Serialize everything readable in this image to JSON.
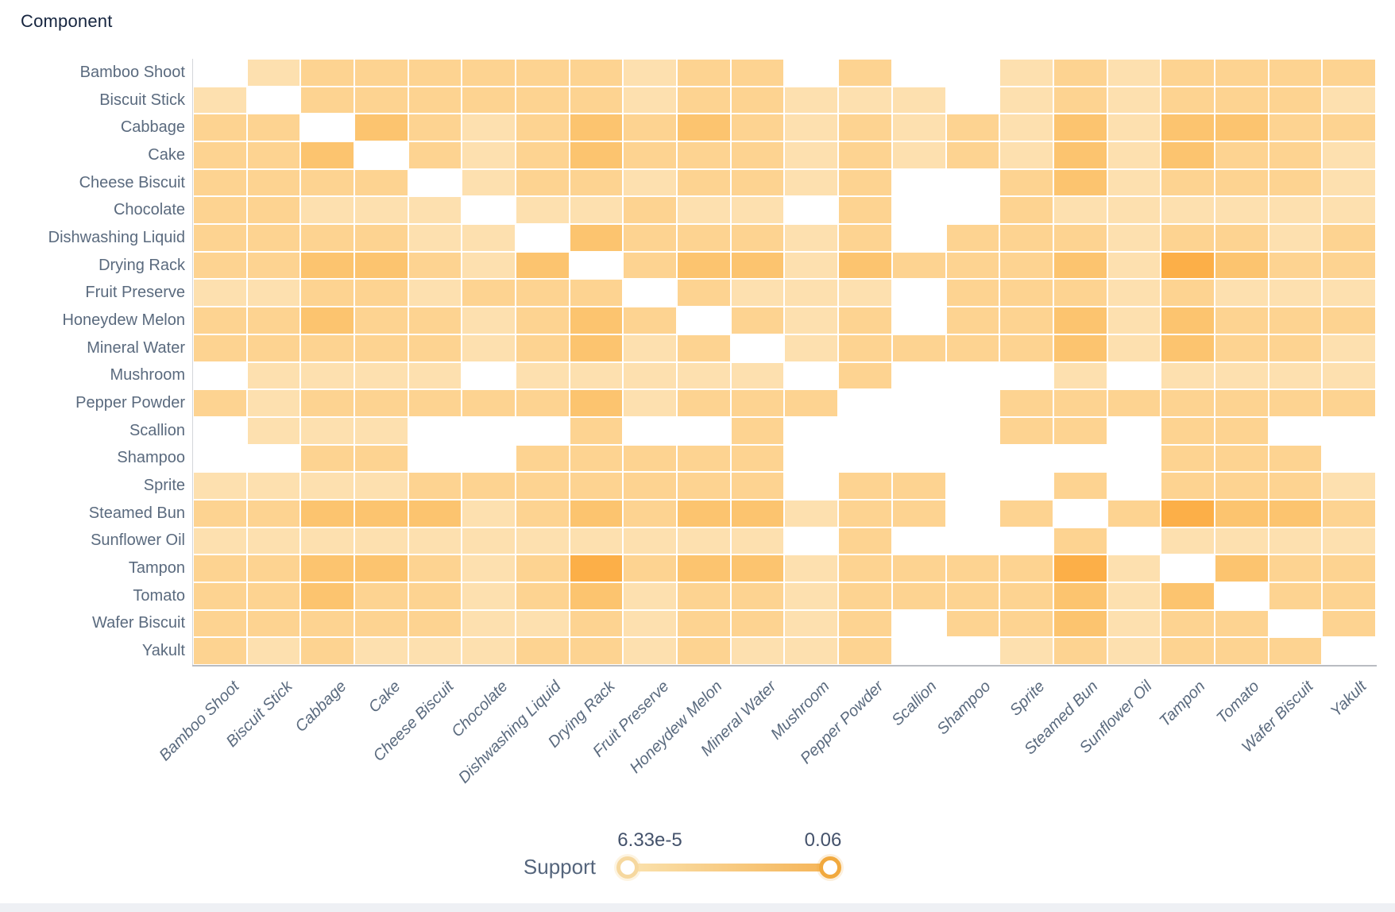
{
  "title": "Component",
  "chart_data": {
    "type": "heatmap",
    "title": "Component",
    "x_categories": [
      "Bamboo Shoot",
      "Biscuit Stick",
      "Cabbage",
      "Cake",
      "Cheese Biscuit",
      "Chocolate",
      "Dishwashing Liquid",
      "Drying Rack",
      "Fruit Preserve",
      "Honeydew Melon",
      "Mineral Water",
      "Mushroom",
      "Pepper Powder",
      "Scallion",
      "Shampoo",
      "Sprite",
      "Steamed Bun",
      "Sunflower Oil",
      "Tampon",
      "Tomato",
      "Wafer Biscuit",
      "Yakult"
    ],
    "y_categories": [
      "Bamboo Shoot",
      "Biscuit Stick",
      "Cabbage",
      "Cake",
      "Cheese Biscuit",
      "Chocolate",
      "Dishwashing Liquid",
      "Drying Rack",
      "Fruit Preserve",
      "Honeydew Melon",
      "Mineral Water",
      "Mushroom",
      "Pepper Powder",
      "Scallion",
      "Shampoo",
      "Sprite",
      "Steamed Bun",
      "Sunflower Oil",
      "Tampon",
      "Tomato",
      "Wafer Biscuit",
      "Yakult"
    ],
    "value_note": "support intensity level per cell; 0 = no rule shown (blank), 1 = lowest support, 5 = highest support (approx 0.06)",
    "matrix": [
      [
        0,
        2,
        3,
        3,
        3,
        3,
        3,
        3,
        2,
        3,
        3,
        0,
        3,
        0,
        0,
        2,
        3,
        2,
        3,
        3,
        3,
        3
      ],
      [
        2,
        0,
        3,
        3,
        3,
        3,
        3,
        3,
        2,
        3,
        3,
        2,
        2,
        2,
        0,
        2,
        3,
        2,
        3,
        3,
        3,
        2
      ],
      [
        3,
        3,
        0,
        4,
        3,
        2,
        3,
        4,
        3,
        4,
        3,
        2,
        3,
        2,
        3,
        2,
        4,
        2,
        4,
        4,
        3,
        3
      ],
      [
        3,
        3,
        4,
        0,
        3,
        2,
        3,
        4,
        3,
        3,
        3,
        2,
        3,
        2,
        3,
        2,
        4,
        2,
        4,
        3,
        3,
        2
      ],
      [
        3,
        3,
        3,
        3,
        0,
        2,
        3,
        3,
        2,
        3,
        3,
        2,
        3,
        0,
        0,
        3,
        4,
        2,
        3,
        3,
        3,
        2
      ],
      [
        3,
        3,
        2,
        2,
        2,
        0,
        2,
        2,
        3,
        2,
        2,
        0,
        3,
        0,
        0,
        3,
        2,
        2,
        2,
        2,
        2,
        2
      ],
      [
        3,
        3,
        3,
        3,
        2,
        2,
        0,
        4,
        3,
        3,
        3,
        2,
        3,
        0,
        3,
        3,
        3,
        2,
        3,
        3,
        2,
        3
      ],
      [
        3,
        3,
        4,
        4,
        3,
        2,
        4,
        0,
        3,
        4,
        4,
        2,
        4,
        3,
        3,
        3,
        4,
        2,
        5,
        4,
        3,
        3
      ],
      [
        2,
        2,
        3,
        3,
        2,
        3,
        3,
        3,
        0,
        3,
        2,
        2,
        2,
        0,
        3,
        3,
        3,
        2,
        3,
        2,
        2,
        2
      ],
      [
        3,
        3,
        4,
        3,
        3,
        2,
        3,
        4,
        3,
        0,
        3,
        2,
        3,
        0,
        3,
        3,
        4,
        2,
        4,
        3,
        3,
        3
      ],
      [
        3,
        3,
        3,
        3,
        3,
        2,
        3,
        4,
        2,
        3,
        0,
        2,
        3,
        3,
        3,
        3,
        4,
        2,
        4,
        3,
        3,
        2
      ],
      [
        0,
        2,
        2,
        2,
        2,
        0,
        2,
        2,
        2,
        2,
        2,
        0,
        3,
        0,
        0,
        0,
        2,
        0,
        2,
        2,
        2,
        2
      ],
      [
        3,
        2,
        3,
        3,
        3,
        3,
        3,
        4,
        2,
        3,
        3,
        3,
        0,
        0,
        0,
        3,
        3,
        3,
        3,
        3,
        3,
        3
      ],
      [
        0,
        2,
        2,
        2,
        0,
        0,
        0,
        3,
        0,
        0,
        3,
        0,
        0,
        0,
        0,
        3,
        3,
        0,
        3,
        3,
        0,
        0
      ],
      [
        0,
        0,
        3,
        3,
        0,
        0,
        3,
        3,
        3,
        3,
        3,
        0,
        0,
        0,
        0,
        0,
        0,
        0,
        3,
        3,
        3,
        0
      ],
      [
        2,
        2,
        2,
        2,
        3,
        3,
        3,
        3,
        3,
        3,
        3,
        0,
        3,
        3,
        0,
        0,
        3,
        0,
        3,
        3,
        3,
        2
      ],
      [
        3,
        3,
        4,
        4,
        4,
        2,
        3,
        4,
        3,
        4,
        4,
        2,
        3,
        3,
        0,
        3,
        0,
        3,
        5,
        4,
        4,
        3
      ],
      [
        2,
        2,
        2,
        2,
        2,
        2,
        2,
        2,
        2,
        2,
        2,
        0,
        3,
        0,
        0,
        0,
        3,
        0,
        2,
        2,
        2,
        2
      ],
      [
        3,
        3,
        4,
        4,
        3,
        2,
        3,
        5,
        3,
        4,
        4,
        2,
        3,
        3,
        3,
        3,
        5,
        2,
        0,
        4,
        3,
        3
      ],
      [
        3,
        3,
        4,
        3,
        3,
        2,
        3,
        4,
        2,
        3,
        3,
        2,
        3,
        3,
        3,
        3,
        4,
        2,
        4,
        0,
        3,
        3
      ],
      [
        3,
        3,
        3,
        3,
        3,
        2,
        2,
        3,
        2,
        3,
        3,
        2,
        3,
        0,
        3,
        3,
        4,
        2,
        3,
        3,
        0,
        3
      ],
      [
        3,
        2,
        3,
        2,
        2,
        2,
        3,
        3,
        2,
        3,
        2,
        2,
        3,
        0,
        0,
        2,
        3,
        2,
        3,
        3,
        3,
        0
      ]
    ],
    "palette": [
      "#ffffff",
      "#fdeec9",
      "#fde0af",
      "#fdd391",
      "#fcc46f",
      "#fcaf48"
    ],
    "legend_position": "bottom",
    "grid": true
  },
  "slider": {
    "label": "Support",
    "min_value": "6.33e-5",
    "max_value": "0.06",
    "track_gradient_start": "#fae2ae",
    "track_gradient_end": "#f5b457",
    "handle_min_color": "#f6d89f",
    "handle_max_color": "#f1a93e"
  },
  "colors": {
    "title_text": "#16253f",
    "axis_label_text": "#5a6a7e",
    "axis_line": "#b9bcc2",
    "bottom_bar": "#eef0f4"
  }
}
